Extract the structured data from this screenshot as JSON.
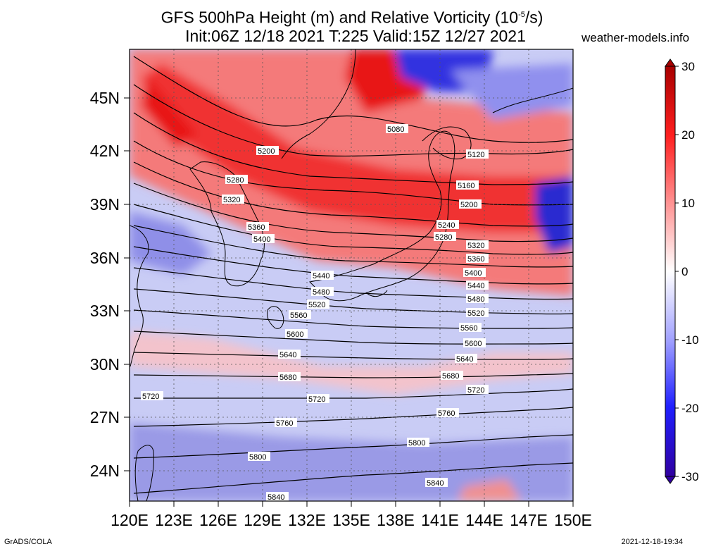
{
  "title": {
    "line1_main": "GFS 500hPa Height (m) and Relative Vorticity (10",
    "line1_exp": "-5",
    "line1_end": "/s)",
    "line2": "Init:06Z 12/18 2021 T:225 Valid:15Z 12/27 2021"
  },
  "site": "weather-models.info",
  "footer": {
    "left": "GrADS/COLA",
    "right": "2021-12-18-19:34"
  },
  "map": {
    "lon_range": [
      120,
      150
    ],
    "lat_range": [
      22.5,
      48
    ],
    "lon_ticks": [
      "120E",
      "123E",
      "126E",
      "129E",
      "132E",
      "135E",
      "138E",
      "141E",
      "144E",
      "147E",
      "150E"
    ],
    "lat_ticks": [
      "24N",
      "27N",
      "30N",
      "33N",
      "36N",
      "39N",
      "42N",
      "45N"
    ],
    "contour_levels": [
      "5080",
      "5120",
      "5160",
      "5200",
      "5240",
      "5280",
      "5320",
      "5360",
      "5400",
      "5440",
      "5480",
      "5520",
      "5560",
      "5600",
      "5640",
      "5680",
      "5720",
      "5760",
      "5800",
      "5840"
    ]
  },
  "colorbar": {
    "labels": [
      "30",
      "20",
      "10",
      "0",
      "-10",
      "-20",
      "-30"
    ],
    "colors": {
      "strong_pos": "#a80000",
      "pos": "#ff2020",
      "weak_pos": "#ff9090",
      "zero": "#ffffff",
      "weak_neg": "#a0a0ff",
      "neg": "#2020ff",
      "strong_neg": "#3000a0"
    }
  }
}
